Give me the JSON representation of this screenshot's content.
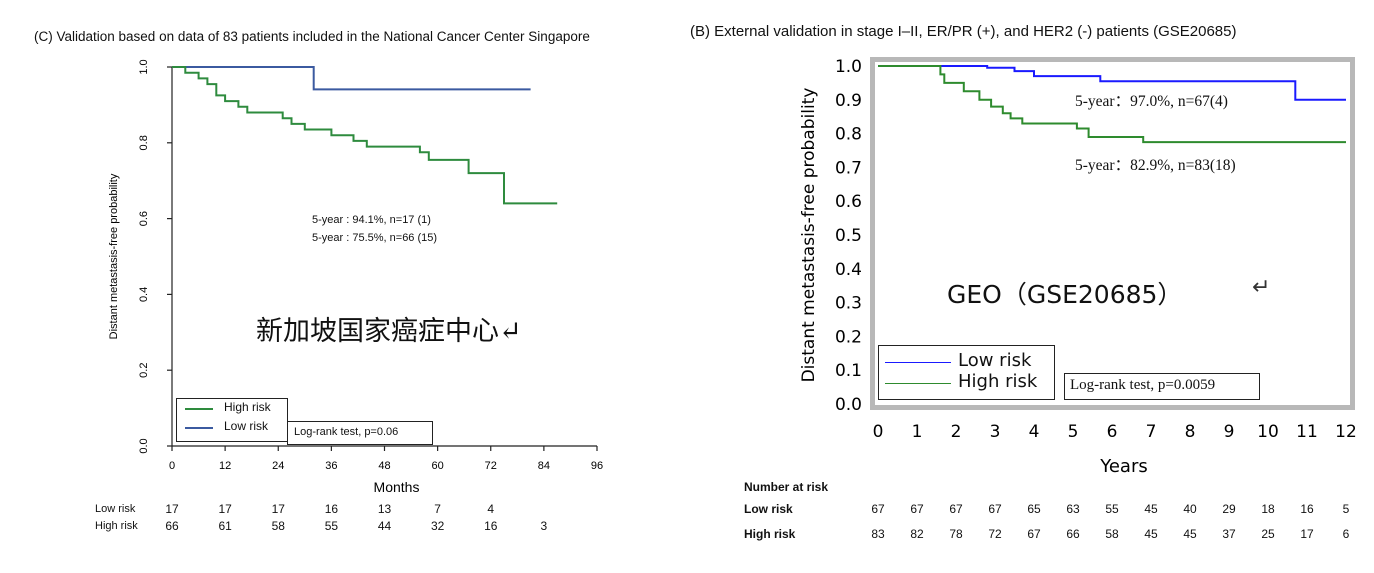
{
  "panel_c": {
    "title": "(C) Validation based on data of 83 patients included in the National Cancer Center Singapore",
    "annotation_low": "5-year : 94.1%, n=17 (1)",
    "annotation_high": "5-year : 75.5%, n=66 (15)",
    "overlay_text": "新加坡国家癌症中心↵",
    "legend_high": "High risk",
    "legend_low": "Low risk",
    "logrank": "Log-rank test, p=0.06",
    "xlabel": "Months",
    "ylabel": "Distant metastasis-free probability",
    "risk_labels": [
      "Low risk",
      "High risk"
    ],
    "risk_low": [
      "17",
      "17",
      "17",
      "16",
      "13",
      "7",
      "4"
    ],
    "risk_high": [
      "66",
      "61",
      "58",
      "55",
      "44",
      "32",
      "16",
      "3"
    ]
  },
  "panel_b": {
    "title": "(B) External validation in stage I–II, ER/PR (+), and HER2 (-) patients (GSE20685)",
    "annotation_low": "5-year：97.0%, n=67(4)",
    "annotation_high": "5-year：82.9%, n=83(18)",
    "overlay_text": "GEO（GSE20685）",
    "overlay_arrow": "↵",
    "legend_low": "Low risk",
    "legend_high": "High risk",
    "logrank": "Log-rank test, p=0.0059",
    "xlabel": "Years",
    "ylabel": "Distant metastasis-free probability",
    "risk_heading": "Number at risk",
    "risk_labels": [
      "Low risk",
      "High risk"
    ],
    "risk_low": [
      "67",
      "67",
      "67",
      "67",
      "65",
      "63",
      "55",
      "45",
      "40",
      "29",
      "18",
      "16",
      "5"
    ],
    "risk_high": [
      "83",
      "82",
      "78",
      "72",
      "67",
      "66",
      "58",
      "45",
      "45",
      "37",
      "25",
      "17",
      "6"
    ]
  },
  "chart_data": [
    {
      "type": "line",
      "title": "(C) Validation based on data of 83 patients included in the National Cancer Center Singapore",
      "xlabel": "Months",
      "ylabel": "Distant metastasis-free probability",
      "xlim": [
        0,
        96
      ],
      "ylim": [
        0,
        1.0
      ],
      "xticks": [
        "0",
        "12",
        "24",
        "36",
        "48",
        "60",
        "72",
        "84",
        "96"
      ],
      "yticks": [
        "0.0",
        "0.2",
        "0.4",
        "0.6",
        "0.8",
        "1.0"
      ],
      "series": [
        {
          "name": "Low risk",
          "color": "#3b5aa0",
          "x": [
            0,
            32,
            32,
            81
          ],
          "y": [
            1.0,
            1.0,
            0.941,
            0.941
          ]
        },
        {
          "name": "High risk",
          "color": "#2e8b3e",
          "x": [
            0,
            3,
            3,
            6,
            6,
            8,
            8,
            10,
            10,
            12,
            12,
            15,
            15,
            17,
            17,
            25,
            25,
            27,
            27,
            30,
            30,
            36,
            36,
            41,
            41,
            44,
            44,
            56,
            56,
            58,
            58,
            67,
            67,
            75,
            75,
            87
          ],
          "y": [
            1.0,
            1.0,
            0.985,
            0.985,
            0.97,
            0.97,
            0.955,
            0.955,
            0.925,
            0.925,
            0.91,
            0.91,
            0.895,
            0.895,
            0.88,
            0.88,
            0.865,
            0.865,
            0.85,
            0.85,
            0.835,
            0.835,
            0.82,
            0.82,
            0.805,
            0.805,
            0.79,
            0.79,
            0.775,
            0.775,
            0.755,
            0.755,
            0.72,
            0.72,
            0.64,
            0.64
          ]
        }
      ]
    },
    {
      "type": "line",
      "title": "(B) External validation in stage I–II, ER/PR (+), and HER2 (-) patients (GSE20685)",
      "xlabel": "Years",
      "ylabel": "Distant metastasis-free probability",
      "xlim": [
        0,
        12
      ],
      "ylim": [
        0,
        1.0
      ],
      "xticks": [
        "0",
        "1",
        "2",
        "3",
        "4",
        "5",
        "6",
        "7",
        "8",
        "9",
        "10",
        "11",
        "12"
      ],
      "yticks": [
        "0.0",
        "0.1",
        "0.2",
        "0.3",
        "0.4",
        "0.5",
        "0.6",
        "0.7",
        "0.8",
        "0.9",
        "1.0"
      ],
      "series": [
        {
          "name": "Low risk",
          "color": "#1a1aff",
          "x": [
            0,
            2.8,
            2.8,
            3.5,
            3.5,
            4.0,
            4.0,
            5.7,
            5.7,
            10.7,
            10.7,
            12
          ],
          "y": [
            1.0,
            1.0,
            0.995,
            0.995,
            0.985,
            0.985,
            0.97,
            0.97,
            0.955,
            0.955,
            0.9,
            0.9
          ]
        },
        {
          "name": "High risk",
          "color": "#2e8b2e",
          "x": [
            0,
            1.6,
            1.6,
            1.7,
            1.7,
            2.2,
            2.2,
            2.6,
            2.6,
            2.9,
            2.9,
            3.2,
            3.2,
            3.4,
            3.4,
            3.7,
            3.7,
            5.1,
            5.1,
            5.4,
            5.4,
            6.8,
            6.8,
            12
          ],
          "y": [
            1.0,
            1.0,
            0.975,
            0.975,
            0.95,
            0.95,
            0.925,
            0.925,
            0.9,
            0.9,
            0.88,
            0.88,
            0.86,
            0.86,
            0.845,
            0.845,
            0.83,
            0.83,
            0.815,
            0.815,
            0.79,
            0.79,
            0.775,
            0.775
          ]
        }
      ]
    }
  ]
}
